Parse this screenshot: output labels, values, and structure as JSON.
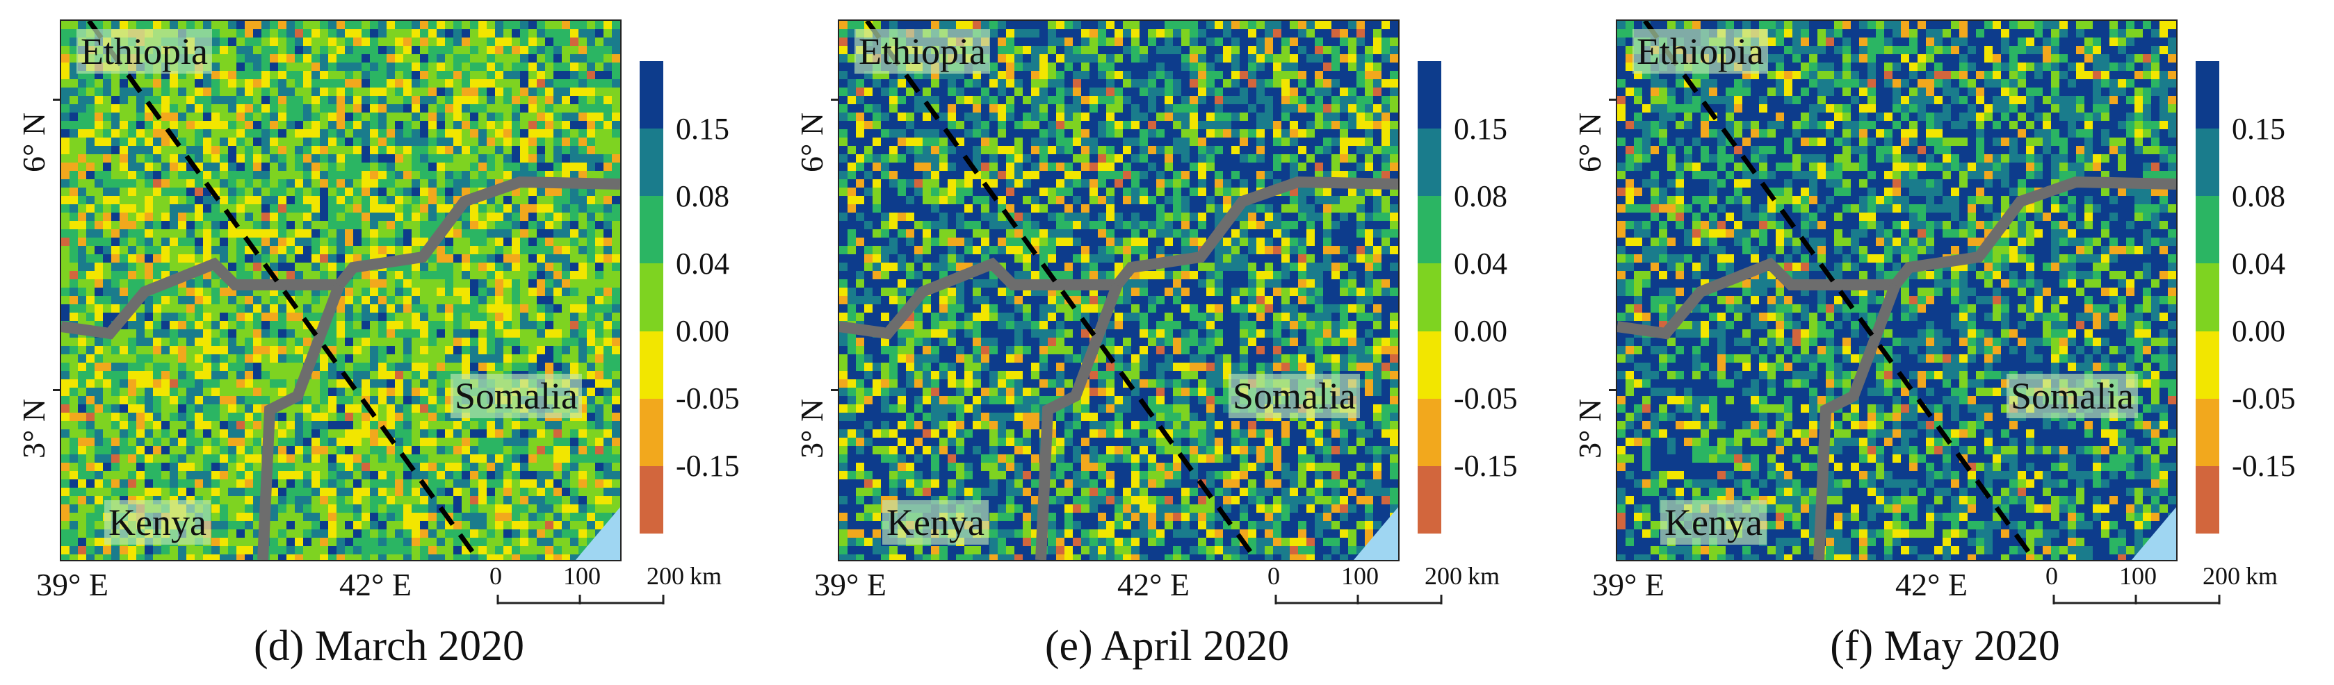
{
  "colors": {
    "legend": [
      "#0d3c8c",
      "#1a7c8c",
      "#2bb563",
      "#7ed321",
      "#f2e600",
      "#f2a81d",
      "#d2663d"
    ],
    "border": "#6d6d6d",
    "water": "#9fd6f2"
  },
  "legend_labels": [
    "0.15",
    "0.08",
    "0.04",
    "0.00",
    "-0.05",
    "-0.15"
  ],
  "axis": {
    "lat_labels": [
      "6° N",
      "3° N"
    ],
    "lon_labels": [
      "39° E",
      "42° E"
    ]
  },
  "scale": {
    "labels": [
      "0",
      "100",
      "200"
    ],
    "unit": "km"
  },
  "countries": [
    "Ethiopia",
    "Somalia",
    "Kenya"
  ],
  "panels": [
    {
      "caption": "(d) March 2020",
      "seed": 7,
      "weights": [
        0.06,
        0.15,
        0.26,
        0.28,
        0.16,
        0.08,
        0.01
      ]
    },
    {
      "caption": "(e) April 2020",
      "seed": 19,
      "weights": [
        0.34,
        0.22,
        0.14,
        0.12,
        0.09,
        0.07,
        0.02
      ]
    },
    {
      "caption": "(f) May 2020",
      "seed": 31,
      "weights": [
        0.4,
        0.22,
        0.15,
        0.1,
        0.07,
        0.05,
        0.01
      ]
    }
  ]
}
